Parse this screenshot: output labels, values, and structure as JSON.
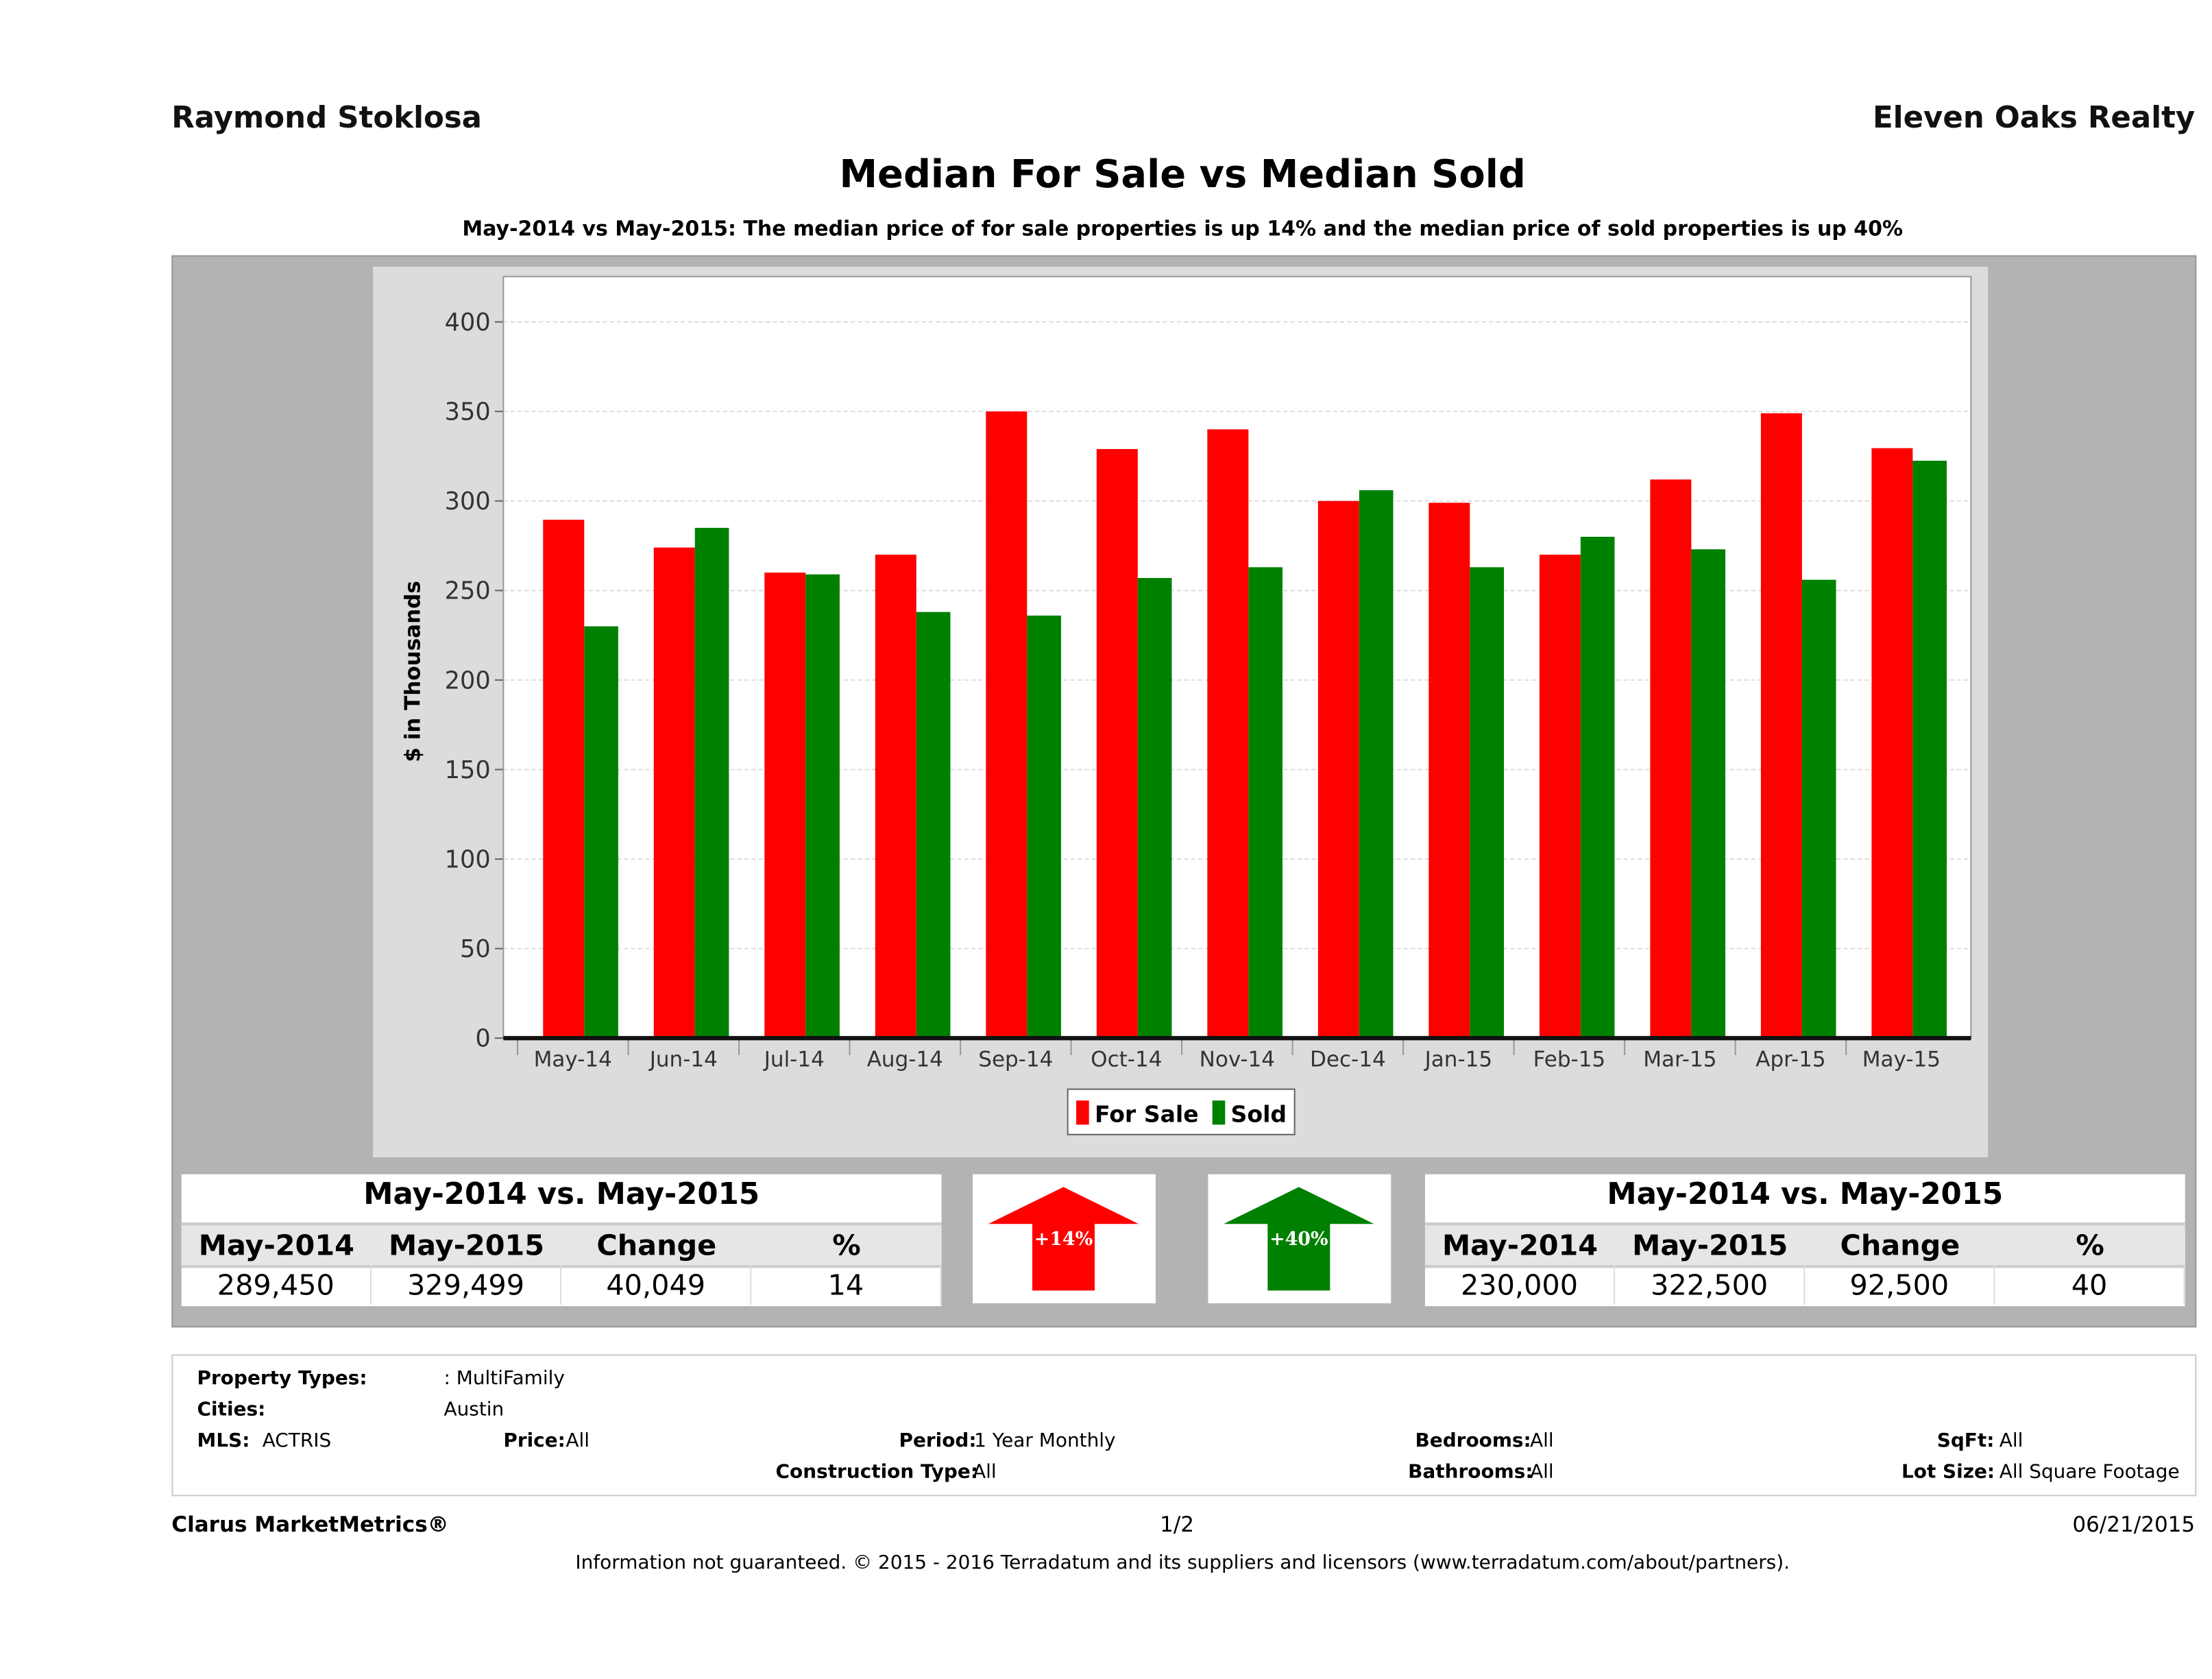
{
  "header": {
    "agent": "Raymond Stoklosa",
    "brokerage": "Eleven Oaks Realty"
  },
  "chart_data": {
    "type": "bar",
    "title": "Median For Sale vs Median Sold",
    "subtitle": "May-2014 vs May-2015: The median price of for sale properties is up 14% and the median price of sold properties is up 40%",
    "ylabel": "$ in Thousands",
    "xlabel": "",
    "ylim": [
      0,
      400
    ],
    "yticks": [
      0,
      50,
      100,
      150,
      200,
      250,
      300,
      350,
      400
    ],
    "grid": true,
    "legend_placement": "bottom",
    "categories": [
      "May-14",
      "Jun-14",
      "Jul-14",
      "Aug-14",
      "Sep-14",
      "Oct-14",
      "Nov-14",
      "Dec-14",
      "Jan-15",
      "Feb-15",
      "Mar-15",
      "Apr-15",
      "May-15"
    ],
    "series": [
      {
        "name": "For Sale",
        "color": "#ff0000",
        "values": [
          289.5,
          274,
          260,
          270,
          350,
          329,
          340,
          300,
          299,
          270,
          312,
          349,
          329.5
        ]
      },
      {
        "name": "Sold",
        "color": "#008000",
        "values": [
          230,
          285,
          259,
          238,
          236,
          257,
          263,
          306,
          263,
          280,
          273,
          256,
          322.5
        ]
      }
    ]
  },
  "for_sale_table": {
    "caption": "May-2014 vs. May-2015",
    "headers": [
      "May-2014",
      "May-2015",
      "Change",
      "%"
    ],
    "values": [
      "289,450",
      "329,499",
      "40,049",
      "14"
    ]
  },
  "sold_table": {
    "caption": "May-2014 vs. May-2015",
    "headers": [
      "May-2014",
      "May-2015",
      "Change",
      "%"
    ],
    "values": [
      "230,000",
      "322,500",
      "92,500",
      "40"
    ]
  },
  "arrows": {
    "for_sale": {
      "label": "+14%",
      "color": "#ff0000",
      "icon": "arrow-up-icon"
    },
    "sold": {
      "label": "+40%",
      "color": "#008000",
      "icon": "arrow-up-icon"
    }
  },
  "filters": {
    "property_types_label": "Property Types:",
    "property_types": ": MultiFamily",
    "cities_label": "Cities:",
    "cities": "Austin",
    "mls_label": "MLS:",
    "mls": "ACTRIS",
    "price_label": "Price:",
    "price": "All",
    "period_label": "Period:",
    "period": "1 Year Monthly",
    "bedrooms_label": "Bedrooms:",
    "bedrooms": "All",
    "sqft_label": "SqFt:",
    "sqft": "All",
    "construction_label": "Construction Type:",
    "construction": "All",
    "bathrooms_label": "Bathrooms:",
    "bathrooms": "All",
    "lot_label": "Lot Size:",
    "lot": "All Square Footage"
  },
  "footer": {
    "brand": "Clarus MarketMetrics®",
    "page": "1/2",
    "date": "06/21/2015",
    "disclaimer": "Information not guaranteed. © 2015 - 2016 Terradatum and its suppliers and licensors (www.terradatum.com/about/partners)."
  }
}
